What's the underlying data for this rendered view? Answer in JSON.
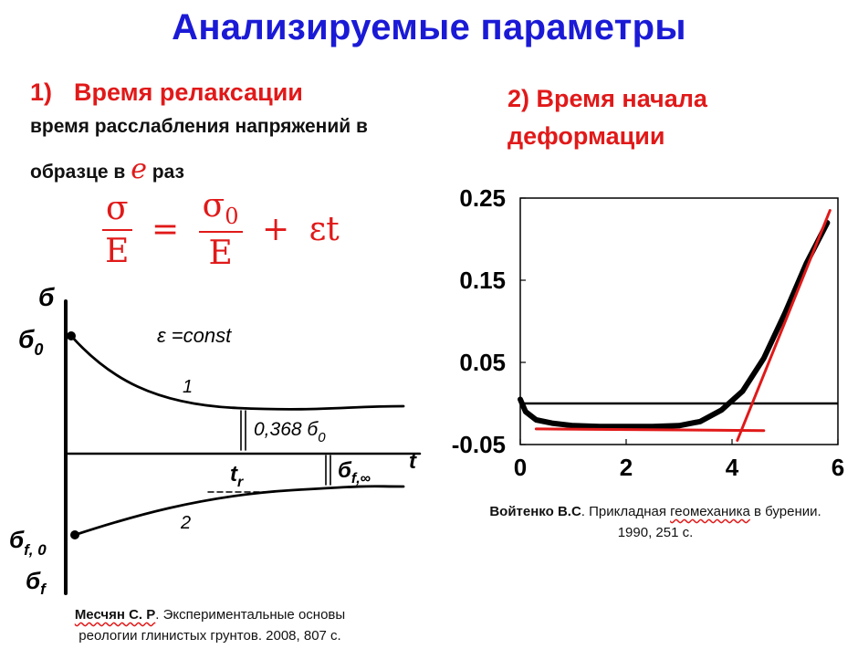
{
  "title": "Анализируемые параметры",
  "section1": {
    "number": "1)",
    "title": "Время релаксации",
    "desc_line1": "время расслабления напряжений в",
    "desc_line2_prefix": "образце в",
    "desc_symbol": "e",
    "desc_line2_suffix": "раз",
    "formula": {
      "lhs_num": "σ",
      "lhs_den": "E",
      "equals": "=",
      "rhs_num": "σ",
      "rhs_num_sub": "0",
      "rhs_den": "E",
      "plus": "+",
      "tail": "εt"
    }
  },
  "section2": {
    "title_line1": "2) Время начала",
    "title_line2": "деформации"
  },
  "relaxation_diagram": {
    "axis_label_y": "б",
    "label_sigma0": "б",
    "label_sigma0_sub": "0",
    "label_eps": "ε =const",
    "curve1_label": "1",
    "curve2_label": "2",
    "label_0368": "0,368 б",
    "label_0368_sub": "0",
    "label_t": "t",
    "label_tr": "t",
    "label_tr_sub": "r",
    "label_sigma_f_inf": "б",
    "label_sigma_f_inf_sub": "f,∞",
    "label_sigma_f0": "б",
    "label_sigma_f0_sub": "f, 0",
    "label_sigma_f": "б",
    "label_sigma_f_sub": "f"
  },
  "citation_left": {
    "author": "Месчян С. Р",
    "text_line1": ". Экспериментальные основы",
    "text_line2": "реологии глинистых грунтов. 2008, 807 с."
  },
  "citation_right": {
    "author": "Войтенко В.С",
    "text_pre": ". Прикладная ",
    "text_wavy": "геомеханика",
    "text_post": " в бурении.",
    "text_line2": "1990, 251 с."
  },
  "chart_data": {
    "type": "line",
    "title": "",
    "xlabel": "",
    "ylabel": "",
    "xlim": [
      0,
      6
    ],
    "ylim": [
      -0.05,
      0.25
    ],
    "x_ticks": [
      "0",
      "2",
      "4",
      "6"
    ],
    "y_ticks": [
      "0.25",
      "0.15",
      "0.05",
      "-0.05"
    ],
    "hline": 0.0,
    "series": [
      {
        "color": "#000000",
        "x": [
          0.0,
          0.1,
          0.3,
          0.6,
          1.0,
          1.5,
          2.0,
          2.5,
          3.0,
          3.4,
          3.8,
          4.2,
          4.6,
          5.0,
          5.4,
          5.8
        ],
        "y": [
          0.005,
          -0.01,
          -0.02,
          -0.024,
          -0.027,
          -0.028,
          -0.028,
          -0.028,
          -0.027,
          -0.022,
          -0.008,
          0.015,
          0.055,
          0.11,
          0.17,
          0.22
        ]
      }
    ],
    "annotation_lines": [
      {
        "color": "#e11919",
        "x": [
          0.3,
          4.6
        ],
        "y": [
          -0.031,
          -0.033
        ]
      },
      {
        "color": "#e11919",
        "x": [
          4.1,
          5.85
        ],
        "y": [
          -0.045,
          0.235
        ]
      }
    ]
  }
}
